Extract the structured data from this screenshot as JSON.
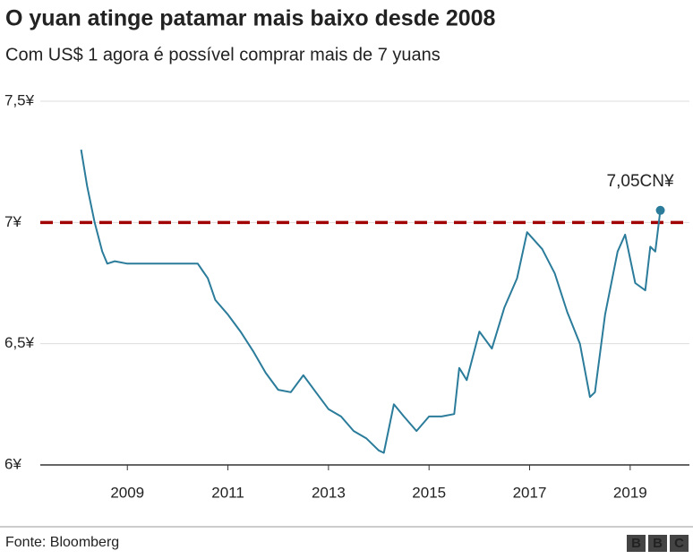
{
  "chart_data": {
    "type": "line",
    "title": "O yuan atinge patamar mais baixo desde 2008",
    "subtitle": "Com US$ 1 agora é possível comprar mais de 7 yuans",
    "x": [
      2008.08,
      2008.2,
      2008.35,
      2008.5,
      2008.6,
      2008.75,
      2009,
      2009.5,
      2010,
      2010.4,
      2010.5,
      2010.6,
      2010.75,
      2011,
      2011.25,
      2011.5,
      2011.75,
      2012,
      2012.25,
      2012.5,
      2012.75,
      2013,
      2013.25,
      2013.5,
      2013.75,
      2014,
      2014.1,
      2014.3,
      2014.5,
      2014.75,
      2015,
      2015.25,
      2015.5,
      2015.6,
      2015.75,
      2016,
      2016.25,
      2016.5,
      2016.75,
      2016.95,
      2017.25,
      2017.5,
      2017.75,
      2018,
      2018.2,
      2018.3,
      2018.5,
      2018.75,
      2018.9,
      2019.1,
      2019.3,
      2019.4,
      2019.5,
      2019.6
    ],
    "series": [
      {
        "color": "#2b7c9b",
        "values": [
          7.3,
          7.15,
          7.0,
          6.88,
          6.83,
          6.84,
          6.83,
          6.83,
          6.83,
          6.83,
          6.8,
          6.77,
          6.68,
          6.62,
          6.55,
          6.47,
          6.38,
          6.31,
          6.3,
          6.37,
          6.3,
          6.23,
          6.2,
          6.14,
          6.11,
          6.06,
          6.05,
          6.25,
          6.2,
          6.14,
          6.2,
          6.2,
          6.21,
          6.4,
          6.35,
          6.55,
          6.48,
          6.65,
          6.77,
          6.96,
          6.89,
          6.79,
          6.63,
          6.5,
          6.28,
          6.3,
          6.62,
          6.88,
          6.95,
          6.75,
          6.72,
          6.9,
          6.88,
          7.05
        ]
      }
    ],
    "xlim": [
      2007.5,
      2020
    ],
    "xticks": [
      2009,
      2011,
      2013,
      2015,
      2017,
      2019
    ],
    "ylim": [
      6,
      7.5
    ],
    "yticks": [
      {
        "value": 6,
        "label": "6¥"
      },
      {
        "value": 6.5,
        "label": "6,5¥"
      },
      {
        "value": 7,
        "label": "7¥"
      },
      {
        "value": 7.5,
        "label": "7,5¥"
      }
    ],
    "reference_line": {
      "value": 7,
      "color": "#a00000"
    },
    "annotation": {
      "text": "7,05CN¥",
      "value": 7.05
    },
    "grid": true,
    "source": "Fonte: Bloomberg",
    "logo": [
      "B",
      "B",
      "C"
    ]
  }
}
